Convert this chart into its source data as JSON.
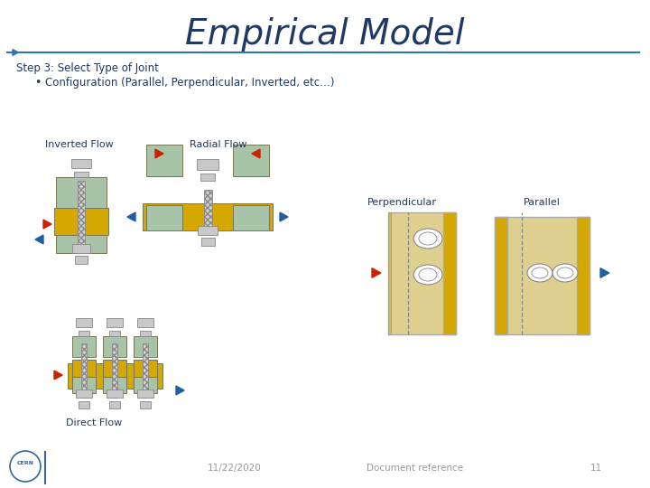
{
  "title": "Empirical Model",
  "title_color": "#1F3864",
  "title_fontsize": 28,
  "step_text": "Step 3: Select Type of Joint",
  "bullet_text": "Configuration (Parallel, Perpendicular, Inverted, etc…)",
  "text_color": "#1F3864",
  "line_color": "#2E75B6",
  "bg_color": "#ffffff",
  "footer_date": "11/22/2020",
  "footer_docref": "Document reference",
  "footer_page": "11",
  "label_inverted": "Inverted Flow",
  "label_radial": "Radial Flow",
  "label_perpendicular": "Perpendicular",
  "label_parallel": "Parallel",
  "label_direct": "Direct Flow",
  "yellow": "#D4A800",
  "green": "#A8C4A8",
  "beige": "#E0D090",
  "gray_metal": "#C0C0C0",
  "arrow_red": "#CC2200",
  "arrow_blue": "#2060A0"
}
